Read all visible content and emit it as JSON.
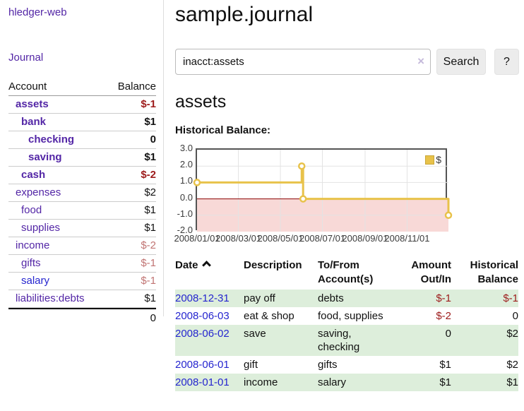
{
  "sidebar": {
    "brand": "hledger-web",
    "nav_journal": "Journal",
    "accounts_table": {
      "headers": {
        "account": "Account",
        "balance": "Balance"
      },
      "rows": [
        {
          "name": "assets",
          "balance": "$-1",
          "level": 1,
          "bold": true,
          "neg": "strong"
        },
        {
          "name": "bank",
          "balance": "$1",
          "level": 2,
          "bold": true
        },
        {
          "name": "checking",
          "balance": "0",
          "level": 3,
          "bold": true
        },
        {
          "name": "saving",
          "balance": "$1",
          "level": 3,
          "bold": true
        },
        {
          "name": "cash",
          "balance": "$-2",
          "level": 2,
          "bold": true,
          "neg": "strong"
        },
        {
          "name": "expenses",
          "balance": "$2",
          "level": 1
        },
        {
          "name": "food",
          "balance": "$1",
          "level": 2
        },
        {
          "name": "supplies",
          "balance": "$1",
          "level": 2
        },
        {
          "name": "income",
          "balance": "$-2",
          "level": 1,
          "neg": "soft"
        },
        {
          "name": "gifts",
          "balance": "$-1",
          "level": 2,
          "neg": "soft"
        },
        {
          "name": "salary",
          "balance": "$-1",
          "level": 2,
          "neg": "soft",
          "link_style": "blue"
        },
        {
          "name": "liabilities:debts",
          "balance": "$1",
          "level": 1
        }
      ],
      "total": "0"
    }
  },
  "header": {
    "title": "sample.journal"
  },
  "search": {
    "query": "inacct:assets",
    "clear_icon": "×",
    "button": "Search",
    "help_button": "?"
  },
  "account_view": {
    "heading": "assets",
    "chart_label": "Historical Balance:"
  },
  "chart_data": {
    "type": "line",
    "step": true,
    "title": "Historical Balance:",
    "legend": "$",
    "legend_position": "top-right",
    "xlim": [
      "2008-01-01",
      "2008-12-31"
    ],
    "ylim": [
      -2,
      3
    ],
    "y_ticks": [
      3.0,
      2.0,
      1.0,
      0.0,
      -1.0,
      -2.0
    ],
    "x_ticks": [
      "2008/01/01",
      "2008/03/01",
      "2008/05/01",
      "2008/07/01",
      "2008/09/01",
      "2008/11/01"
    ],
    "series": [
      {
        "name": "$",
        "points": [
          [
            "2008-01-01",
            1
          ],
          [
            "2008-06-01",
            2
          ],
          [
            "2008-06-03",
            0
          ],
          [
            "2008-12-31",
            -1
          ]
        ]
      }
    ],
    "grid": true,
    "line_color": "#e8c24a",
    "zero_line_color": "#8b0000",
    "negative_region_fill": "#f8d9d7"
  },
  "register_table": {
    "headers": {
      "date": "Date",
      "sort": "asc",
      "description": "Description",
      "account": "To/From Account(s)",
      "amount": "Amount Out/In",
      "balance": "Historical Balance"
    },
    "rows": [
      {
        "date": "2008-12-31",
        "description": "pay off",
        "account": "debts",
        "amount": "$-1",
        "balance": "$-1"
      },
      {
        "date": "2008-06-03",
        "description": "eat & shop",
        "account": "food, supplies",
        "amount": "$-2",
        "balance": "0"
      },
      {
        "date": "2008-06-02",
        "description": "save",
        "account": "saving, checking",
        "amount": "0",
        "balance": "$2"
      },
      {
        "date": "2008-06-01",
        "description": "gift",
        "account": "gifts",
        "amount": "$1",
        "balance": "$2"
      },
      {
        "date": "2008-01-01",
        "description": "income",
        "account": "salary",
        "amount": "$1",
        "balance": "$1"
      }
    ]
  }
}
